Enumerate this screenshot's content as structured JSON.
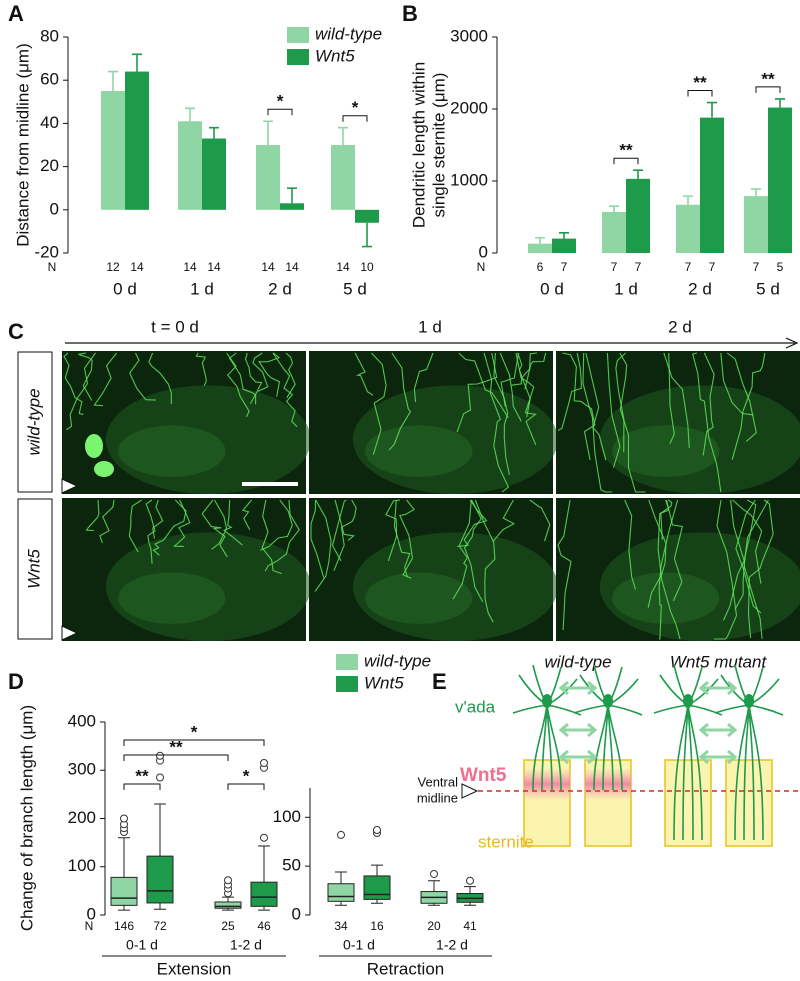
{
  "panel_labels": [
    "A",
    "B",
    "C",
    "D",
    "E"
  ],
  "chart_data": [
    {
      "type": "bar",
      "ylabel": [
        "Distance from midline (μm)"
      ],
      "categories": [
        "0 d",
        "1 d",
        "2 d",
        "5 d"
      ],
      "n_label": "N",
      "series": [
        {
          "name": "wild-type",
          "color": "#8fd6a4",
          "values": [
            55,
            41,
            30,
            30
          ],
          "errors": [
            9,
            6,
            11,
            8
          ],
          "n": [
            12,
            14,
            14,
            14
          ]
        },
        {
          "name": "Wnt5",
          "color": "#1e9a4b",
          "values": [
            64,
            33,
            3,
            -6
          ],
          "errors": [
            8,
            5,
            7,
            11
          ],
          "n": [
            14,
            14,
            14,
            10
          ]
        }
      ],
      "ylim": [
        -20,
        80
      ],
      "yticks": [
        -20,
        0,
        20,
        40,
        60,
        80
      ],
      "legend": "upper right",
      "significance": [
        {
          "pair": [
            [
              0,
              2
            ],
            [
              1,
              2
            ]
          ],
          "label": "*"
        },
        {
          "pair": [
            [
              0,
              3
            ],
            [
              1,
              3
            ]
          ],
          "label": "*"
        }
      ]
    },
    {
      "type": "bar",
      "ylabel": [
        "Dendritic length within",
        "single sternite (μm)"
      ],
      "categories": [
        "0 d",
        "1 d",
        "2 d",
        "5 d"
      ],
      "n_label": "N",
      "series": [
        {
          "color": "#8fd6a4",
          "values": [
            130,
            570,
            670,
            790
          ],
          "errors": [
            80,
            80,
            120,
            100
          ],
          "n": [
            6,
            7,
            7,
            7
          ]
        },
        {
          "color": "#1e9a4b",
          "values": [
            200,
            1030,
            1880,
            2020
          ],
          "errors": [
            80,
            120,
            210,
            120
          ],
          "n": [
            7,
            7,
            7,
            5
          ]
        }
      ],
      "ylim": [
        0,
        3000
      ],
      "yticks": [
        0,
        1000,
        2000,
        3000
      ],
      "significance": [
        {
          "pair": [
            [
              0,
              1
            ],
            [
              1,
              1
            ]
          ],
          "label": "**"
        },
        {
          "pair": [
            [
              0,
              2
            ],
            [
              1,
              2
            ]
          ],
          "label": "**"
        },
        {
          "pair": [
            [
              0,
              3
            ],
            [
              1,
              3
            ]
          ],
          "label": "**"
        }
      ]
    },
    {
      "type": "box",
      "ylabel": [
        "Change of branch length (μm)"
      ],
      "categories": [
        "0-1 d",
        "1-2 d"
      ],
      "group_label": "Extension",
      "n_label": "N",
      "series": [
        {
          "color": "#8fd6a4",
          "whisker_low": [
            10,
            10
          ],
          "q1": [
            20,
            14
          ],
          "median": [
            35,
            18
          ],
          "q3": [
            78,
            27
          ],
          "whisker_high": [
            160,
            37
          ],
          "outliers": [
            [
              172,
              180,
              188,
              200
            ],
            [
              45,
              55,
              63,
              72
            ]
          ],
          "n": [
            146,
            25
          ]
        },
        {
          "color": "#1e9a4b",
          "whisker_low": [
            12,
            10
          ],
          "q1": [
            25,
            18
          ],
          "median": [
            50,
            37
          ],
          "q3": [
            122,
            68
          ],
          "whisker_high": [
            230,
            143
          ],
          "outliers": [
            [
              285,
              320,
              330
            ],
            [
              160,
              305,
              315
            ]
          ],
          "n": [
            72,
            46
          ]
        }
      ],
      "ylim": [
        0,
        400
      ],
      "yticks": [
        0,
        100,
        200,
        300,
        400
      ],
      "significance": [
        {
          "pair": [
            [
              0,
              0
            ],
            [
              1,
              0
            ]
          ],
          "label": "**"
        },
        {
          "pair": [
            [
              0,
              1
            ],
            [
              1,
              1
            ]
          ],
          "label": "*"
        },
        {
          "pair": [
            [
              0,
              0
            ],
            [
              0,
              1
            ]
          ],
          "label": "**"
        },
        {
          "pair": [
            [
              0,
              0
            ],
            [
              1,
              1
            ]
          ],
          "label": "*"
        }
      ]
    },
    {
      "type": "box",
      "categories": [
        "0-1 d",
        "1-2 d"
      ],
      "group_label": "Retraction",
      "series": [
        {
          "name": "wild-type",
          "color": "#8fd6a4",
          "whisker_low": [
            10,
            10
          ],
          "q1": [
            14,
            12
          ],
          "median": [
            19,
            18
          ],
          "q3": [
            32,
            24
          ],
          "whisker_high": [
            44,
            35
          ],
          "outliers": [
            [
              82
            ],
            [
              42
            ]
          ],
          "n": [
            34,
            20
          ]
        },
        {
          "name": "Wnt5",
          "color": "#1e9a4b",
          "whisker_low": [
            12,
            10
          ],
          "q1": [
            16,
            13
          ],
          "median": [
            21,
            17
          ],
          "q3": [
            40,
            22
          ],
          "whisker_high": [
            51,
            29
          ],
          "outliers": [
            [
              84,
              87
            ],
            [
              35
            ]
          ],
          "n": [
            16,
            41
          ]
        }
      ],
      "ylim": [
        0,
        130
      ],
      "yticks": [
        0,
        50,
        100
      ],
      "legend": "upper right"
    }
  ],
  "micrographs": {
    "time_labels": [
      "t = 0 d",
      "1 d",
      "2 d"
    ],
    "row_labels": [
      "wild-type",
      "Wnt5"
    ]
  },
  "diagram": {
    "titles": [
      "wild-type",
      "Wnt5 mutant"
    ],
    "neuron_label": "v'ada",
    "signal_label": "Wnt5",
    "midline_label": [
      "Ventral",
      "midline"
    ],
    "sternite_label": "sternite"
  }
}
